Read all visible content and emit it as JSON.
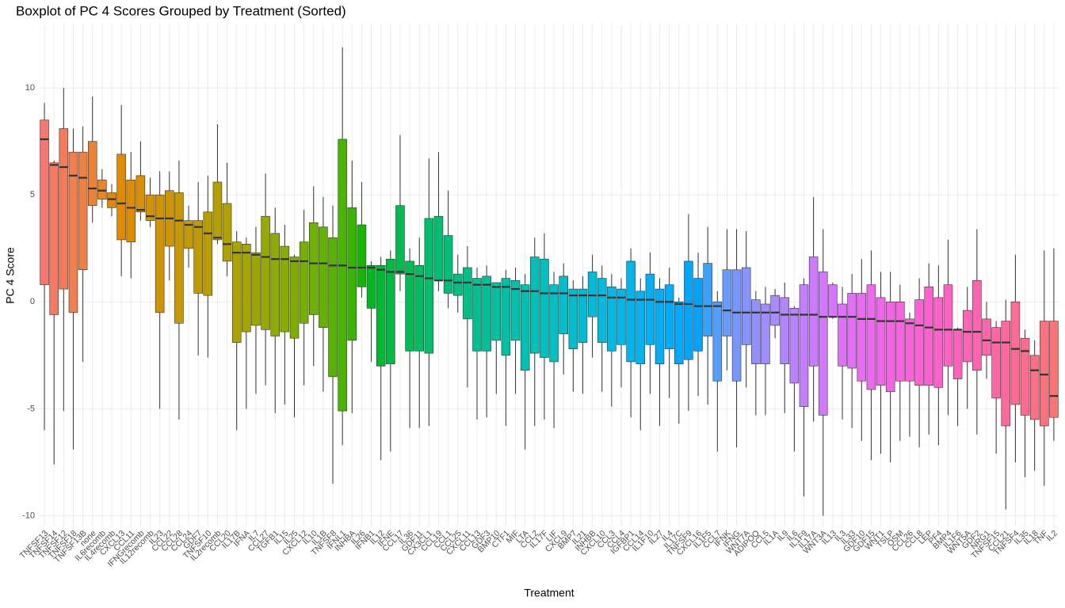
{
  "chart_data": {
    "type": "boxplot",
    "title": "Boxplot of PC 4 Scores Grouped by Treatment (Sorted)",
    "x_label": "Treatment",
    "y_label": "PC 4 Score",
    "categories": [
      "TNFSF13",
      "TNFSF14",
      "TNFSF12",
      "TNFSF18",
      "TNFSF13B",
      "none",
      "IL6recomb",
      "IL4recomb",
      "CXCL13",
      "CCL11",
      "IFNGrecomb",
      "IL12recomb",
      "IL23",
      "CCL22",
      "CCL28",
      "CCL24",
      "GDF7",
      "TNFSF10",
      "IL2recomb",
      "CCL20",
      "IL17B",
      "IFNA",
      "IL7",
      "CCL27",
      "TGFB1",
      "IL15",
      "IL25",
      "CXCL12",
      "IL10",
      "IL1B",
      "TNFSF8",
      "IFNL1",
      "INHBA",
      "IL26",
      "IFNB1",
      "IL12",
      "IFNE",
      "CCL17",
      "IL36",
      "GDF11",
      "CX3CL1",
      "CCL19",
      "CCL1",
      "CCL25",
      "CXCL11",
      "CCL13",
      "GDF3",
      "BMP10",
      "CTF1",
      "MIF",
      "LTA",
      "CCL2",
      "IL17F",
      "LIF",
      "CXCL9",
      "BMP7",
      "IL21",
      "INHBB",
      "CXCL10",
      "CCL3",
      "CCL4",
      "IGFBP1",
      "CCL14",
      "IL1F10",
      "IL27",
      "IL4",
      "IL17C",
      "TNFSF9",
      "CXCL16",
      "IL1F5",
      "CCL7",
      "IFNK",
      "IFNG",
      "WNT7A",
      "ADIPOQ",
      "CCL5",
      "IL1A",
      "IL9",
      "IL6",
      "IL1F9",
      "IL17A",
      "WNT3A",
      "IL13",
      "IL3",
      "IL33",
      "GDF10",
      "GDF15",
      "WNT1",
      "TSLP",
      "OSM",
      "CCL26",
      "CCL8",
      "LEP",
      "PF4",
      "BMP4",
      "IL1F6",
      "WNT5A",
      "GDF2",
      "NRG1",
      "TNFSF15",
      "CCL21",
      "TNFSF4",
      "IL35",
      "IL18",
      "TNF",
      "IL2"
    ],
    "min": [
      -6.0,
      -7.6,
      -5.1,
      -6.9,
      -2.8,
      3.7,
      4.4,
      4.0,
      1.2,
      1.1,
      3.8,
      3.5,
      -5.0,
      1.0,
      -5.5,
      1.6,
      -2.5,
      -2.6,
      2.7,
      1.2,
      -6.0,
      -5.0,
      -4.3,
      -3.9,
      -5.2,
      -4.8,
      -5.4,
      -3.9,
      -3.0,
      -4.2,
      -8.5,
      -6.7,
      -5.2,
      0.2,
      -2.8,
      -7.4,
      -7.0,
      0.5,
      -5.9,
      -5.9,
      -5.8,
      0.5,
      -0.3,
      -0.5,
      -4.0,
      -5.5,
      -5.4,
      -4.3,
      -5.8,
      -4.3,
      -6.9,
      -5.8,
      -5.5,
      -5.9,
      -3.4,
      -4.2,
      -4.3,
      -2.6,
      -4.2,
      -4.9,
      -4.0,
      -5.4,
      -6.0,
      -4.3,
      -5.8,
      -4.5,
      -5.7,
      -5.1,
      -4.4,
      -4.8,
      -7.0,
      -3.2,
      -6.8,
      -4.0,
      -5.3,
      -5.3,
      -1.7,
      -5.2,
      -7.0,
      -9.1,
      -5.6,
      -10.0,
      -0.8,
      -5.5,
      -5.9,
      -6.5,
      -7.4,
      -7.1,
      -7.5,
      -6.5,
      -6.3,
      -6.8,
      -6.2,
      -6.7,
      -5.3,
      -5.8,
      -5.0,
      -6.2,
      -3.6,
      -7.1,
      -9.7,
      -7.5,
      -8.2,
      -7.9,
      -8.6,
      -6.5
    ],
    "q1": [
      0.8,
      -0.6,
      0.6,
      -0.5,
      1.5,
      4.5,
      4.8,
      4.4,
      2.9,
      2.8,
      4.2,
      3.8,
      -0.5,
      2.6,
      -1.0,
      2.5,
      0.4,
      0.3,
      2.9,
      1.9,
      -1.9,
      -1.4,
      -1.1,
      -1.3,
      -1.6,
      -1.4,
      -1.7,
      -1.0,
      -0.6,
      -1.2,
      -3.5,
      -5.1,
      -1.8,
      0.7,
      -0.3,
      -3.0,
      -2.9,
      1.3,
      -2.3,
      -2.3,
      -2.4,
      1.0,
      0.4,
      0.3,
      -0.8,
      -2.3,
      -2.3,
      -1.8,
      -2.5,
      -1.8,
      -3.2,
      -2.4,
      -2.6,
      -2.8,
      -1.5,
      -2.2,
      -1.9,
      -0.7,
      -1.9,
      -2.3,
      -2.0,
      -2.8,
      -2.9,
      -2.0,
      -2.9,
      -2.2,
      -2.9,
      -2.7,
      -2.3,
      -1.6,
      -3.7,
      -1.6,
      -3.7,
      -2.0,
      -2.9,
      -2.9,
      -1.1,
      -2.9,
      -3.8,
      -4.9,
      -3.0,
      -5.3,
      -0.7,
      -3.0,
      -3.1,
      -3.7,
      -4.1,
      -3.9,
      -4.2,
      -3.7,
      -3.7,
      -3.9,
      -3.9,
      -4.0,
      -3.0,
      -3.6,
      -2.8,
      -3.2,
      -2.5,
      -4.5,
      -5.8,
      -4.8,
      -5.3,
      -5.5,
      -5.8,
      -5.4
    ],
    "median": [
      7.6,
      6.4,
      6.3,
      5.9,
      5.8,
      5.3,
      5.2,
      4.8,
      4.6,
      4.4,
      4.3,
      4.0,
      3.9,
      3.9,
      3.8,
      3.6,
      3.5,
      3.2,
      3.0,
      2.7,
      2.3,
      2.3,
      2.2,
      2.1,
      2.0,
      2.0,
      1.9,
      1.9,
      1.8,
      1.8,
      1.7,
      1.7,
      1.6,
      1.6,
      1.6,
      1.5,
      1.4,
      1.4,
      1.3,
      1.2,
      1.1,
      1.0,
      1.0,
      0.9,
      0.9,
      0.8,
      0.8,
      0.7,
      0.7,
      0.6,
      0.5,
      0.5,
      0.4,
      0.4,
      0.4,
      0.3,
      0.3,
      0.3,
      0.3,
      0.2,
      0.2,
      0.1,
      0.1,
      0.1,
      0.0,
      0.0,
      -0.1,
      -0.1,
      -0.2,
      -0.2,
      -0.2,
      -0.4,
      -0.5,
      -0.5,
      -0.5,
      -0.5,
      -0.5,
      -0.6,
      -0.6,
      -0.6,
      -0.6,
      -0.7,
      -0.7,
      -0.7,
      -0.7,
      -0.8,
      -0.8,
      -0.9,
      -0.9,
      -0.9,
      -1.0,
      -1.1,
      -1.2,
      -1.3,
      -1.3,
      -1.3,
      -1.4,
      -1.4,
      -1.8,
      -1.9,
      -1.9,
      -2.2,
      -2.3,
      -3.2,
      -3.4,
      -4.4
    ],
    "q3": [
      8.5,
      6.5,
      8.1,
      7.0,
      7.0,
      7.5,
      5.7,
      5.1,
      6.9,
      5.7,
      5.9,
      5.0,
      5.0,
      5.2,
      5.1,
      3.8,
      3.8,
      4.2,
      5.6,
      4.6,
      2.8,
      2.7,
      2.3,
      4.0,
      3.2,
      2.6,
      2.1,
      2.8,
      3.7,
      3.5,
      3.0,
      7.6,
      4.4,
      3.6,
      1.7,
      1.7,
      2.0,
      4.5,
      1.9,
      1.7,
      3.9,
      4.0,
      3.1,
      1.3,
      1.6,
      1.1,
      1.2,
      0.9,
      1.1,
      1.0,
      0.8,
      2.1,
      2.0,
      0.8,
      1.2,
      0.6,
      0.6,
      1.4,
      1.1,
      0.7,
      0.6,
      1.9,
      0.5,
      1.3,
      0.6,
      0.8,
      0.0,
      1.9,
      1.1,
      1.8,
      0.0,
      1.5,
      1.5,
      1.6,
      0.1,
      -0.1,
      0.3,
      0.2,
      -0.3,
      0.8,
      2.1,
      1.4,
      0.8,
      -0.1,
      0.4,
      0.4,
      0.8,
      0.2,
      0.0,
      0.0,
      -0.8,
      0.1,
      0.7,
      0.2,
      0.8,
      -1.3,
      -0.4,
      1.0,
      -0.8,
      -1.2,
      -0.9,
      0.0,
      -1.7,
      -2.5,
      -0.9,
      -0.9
    ],
    "max": [
      9.3,
      6.6,
      10.0,
      8.1,
      8.2,
      9.6,
      6.2,
      5.5,
      9.2,
      7.0,
      7.5,
      5.8,
      6.1,
      6.1,
      6.6,
      4.5,
      5.6,
      5.9,
      8.3,
      6.5,
      3.3,
      3.0,
      3.5,
      6.0,
      4.4,
      3.6,
      2.2,
      4.3,
      5.4,
      4.9,
      4.5,
      11.9,
      6.6,
      5.6,
      1.9,
      2.1,
      2.4,
      7.8,
      2.5,
      3.0,
      6.7,
      7.0,
      5.2,
      2.2,
      2.6,
      1.6,
      1.7,
      0.9,
      1.5,
      1.6,
      1.3,
      3.0,
      3.2,
      1.4,
      1.8,
      1.0,
      1.2,
      2.2,
      1.7,
      1.3,
      1.1,
      2.5,
      1.1,
      2.3,
      1.1,
      1.6,
      0.2,
      4.1,
      2.3,
      3.5,
      0.5,
      3.4,
      3.4,
      3.3,
      0.5,
      0.7,
      0.6,
      0.9,
      -0.2,
      1.1,
      4.9,
      3.4,
      0.9,
      0.7,
      1.3,
      2.0,
      2.4,
      1.4,
      1.4,
      0.8,
      -0.5,
      1.1,
      1.8,
      1.7,
      2.9,
      -1.2,
      0.7,
      3.4,
      0.0,
      -0.9,
      0.1,
      2.2,
      -1.3,
      -1.8,
      2.4,
      2.5
    ],
    "palette": {
      "h": [
        15,
        375
      ],
      "c": 100,
      "l": 65
    },
    "ylim": [
      -10.5,
      13
    ],
    "yticks": [
      -10,
      -5,
      0,
      5,
      10
    ],
    "grid": true
  }
}
